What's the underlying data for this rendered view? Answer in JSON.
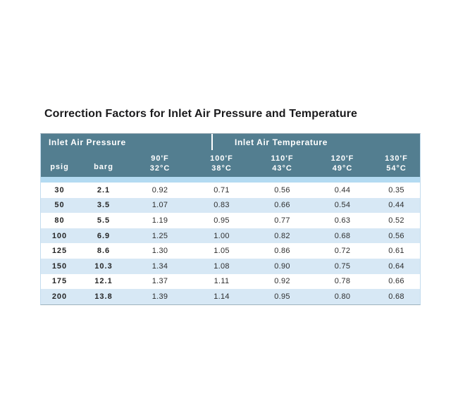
{
  "title": "Correction Factors for Inlet Air Pressure and Temperature",
  "table": {
    "group_headers": {
      "pressure": "Inlet Air Pressure",
      "temperature": "Inlet Air Temperature"
    },
    "pressure_columns": {
      "psig": "psig",
      "barg": "barg"
    },
    "temperature_columns": [
      {
        "f": "90'F",
        "c": "32°C"
      },
      {
        "f": "100'F",
        "c": "38°C"
      },
      {
        "f": "110'F",
        "c": "43°C"
      },
      {
        "f": "120'F",
        "c": "49°C"
      },
      {
        "f": "130'F",
        "c": "54°C"
      }
    ],
    "rows": [
      {
        "psig": "30",
        "barg": "2.1",
        "factors": [
          "0.92",
          "0.71",
          "0.56",
          "0.44",
          "0.35"
        ]
      },
      {
        "psig": "50",
        "barg": "3.5",
        "factors": [
          "1.07",
          "0.83",
          "0.66",
          "0.54",
          "0.44"
        ]
      },
      {
        "psig": "80",
        "barg": "5.5",
        "factors": [
          "1.19",
          "0.95",
          "0.77",
          "0.63",
          "0.52"
        ]
      },
      {
        "psig": "100",
        "barg": "6.9",
        "factors": [
          "1.25",
          "1.00",
          "0.82",
          "0.68",
          "0.56"
        ]
      },
      {
        "psig": "125",
        "barg": "8.6",
        "factors": [
          "1.30",
          "1.05",
          "0.86",
          "0.72",
          "0.61"
        ]
      },
      {
        "psig": "150",
        "barg": "10.3",
        "factors": [
          "1.34",
          "1.08",
          "0.90",
          "0.75",
          "0.64"
        ]
      },
      {
        "psig": "175",
        "barg": "12.1",
        "factors": [
          "1.37",
          "1.11",
          "0.92",
          "0.78",
          "0.66"
        ]
      },
      {
        "psig": "200",
        "barg": "13.8",
        "factors": [
          "1.39",
          "1.14",
          "0.95",
          "0.80",
          "0.68"
        ]
      }
    ]
  },
  "colors": {
    "header_bg": "#537e90",
    "header_text": "#ffffff",
    "stripe_row": "#d7e8f5",
    "spacer_strip": "#b4dbf2",
    "table_border": "#c3dcee",
    "title_text": "#1a1a1c"
  }
}
